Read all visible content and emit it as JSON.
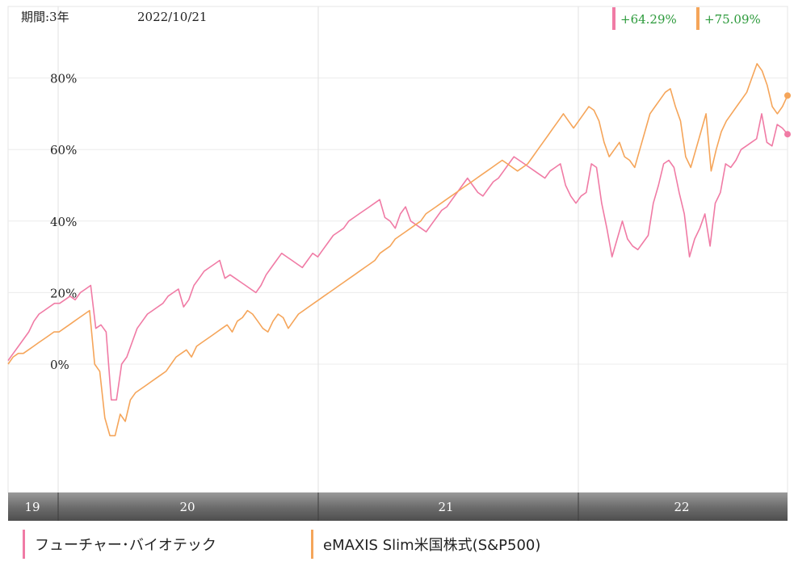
{
  "header": {
    "period_label": "期間:3年",
    "date": "2022/10/21"
  },
  "badges": [
    {
      "text": "+64.29%",
      "color": "#f07ba5"
    },
    {
      "text": "+75.09%",
      "color": "#f5a55a"
    }
  ],
  "chart_data": {
    "type": "line",
    "title": "",
    "ylabel": "",
    "xlabel": "",
    "y_ticks": [
      "0%",
      "20%",
      "40%",
      "60%",
      "80%"
    ],
    "y_tick_values": [
      0,
      20,
      40,
      60,
      80
    ],
    "ylim": [
      -33,
      92
    ],
    "x_ticks": [
      "19",
      "20",
      "21",
      "22"
    ],
    "grid": true,
    "legend_position": "bottom",
    "series": [
      {
        "name": "フューチャー･バイオテック",
        "color": "#f07ba5",
        "values": [
          1,
          3,
          5,
          7,
          9,
          12,
          14,
          15,
          16,
          17,
          17,
          18,
          19,
          18,
          20,
          21,
          22,
          10,
          11,
          9,
          -10,
          -10,
          0,
          2,
          6,
          10,
          12,
          14,
          15,
          16,
          17,
          19,
          20,
          21,
          16,
          18,
          22,
          24,
          26,
          27,
          28,
          29,
          24,
          25,
          24,
          23,
          22,
          21,
          20,
          22,
          25,
          27,
          29,
          31,
          30,
          29,
          28,
          27,
          29,
          31,
          30,
          32,
          34,
          36,
          37,
          38,
          40,
          41,
          42,
          43,
          44,
          45,
          46,
          41,
          40,
          38,
          42,
          44,
          40,
          39,
          38,
          37,
          39,
          41,
          43,
          44,
          46,
          48,
          50,
          52,
          50,
          48,
          47,
          49,
          51,
          52,
          54,
          56,
          58,
          57,
          56,
          55,
          54,
          53,
          52,
          54,
          55,
          56,
          50,
          47,
          45,
          47,
          48,
          56,
          55,
          45,
          38,
          30,
          35,
          40,
          35,
          33,
          32,
          34,
          36,
          45,
          50,
          56,
          57,
          55,
          48,
          42,
          30,
          35,
          38,
          42,
          33,
          45,
          48,
          56,
          55,
          57,
          60,
          61,
          62,
          63,
          70,
          62,
          61,
          67,
          66,
          64.29
        ]
      },
      {
        "name": "eMAXIS Slim米国株式(S&P500)",
        "color": "#f5a55a",
        "values": [
          0,
          2,
          3,
          3,
          4,
          5,
          6,
          7,
          8,
          9,
          9,
          10,
          11,
          12,
          13,
          14,
          15,
          0,
          -2,
          -15,
          -20,
          -20,
          -14,
          -16,
          -10,
          -8,
          -7,
          -6,
          -5,
          -4,
          -3,
          -2,
          0,
          2,
          3,
          4,
          2,
          5,
          6,
          7,
          8,
          9,
          10,
          11,
          9,
          12,
          13,
          15,
          14,
          12,
          10,
          9,
          12,
          14,
          13,
          10,
          12,
          14,
          15,
          16,
          17,
          18,
          19,
          20,
          21,
          22,
          23,
          24,
          25,
          26,
          27,
          28,
          29,
          31,
          32,
          33,
          35,
          36,
          37,
          38,
          39,
          40,
          42,
          43,
          44,
          45,
          46,
          47,
          48,
          49,
          50,
          51,
          52,
          53,
          54,
          55,
          56,
          57,
          56,
          55,
          54,
          55,
          56,
          58,
          60,
          62,
          64,
          66,
          68,
          70,
          68,
          66,
          68,
          70,
          72,
          71,
          68,
          62,
          58,
          60,
          62,
          58,
          57,
          55,
          60,
          65,
          70,
          72,
          74,
          76,
          77,
          72,
          68,
          58,
          55,
          60,
          65,
          70,
          54,
          60,
          65,
          68,
          70,
          72,
          74,
          76,
          80,
          84,
          82,
          78,
          72,
          70,
          72,
          75.09
        ]
      }
    ]
  }
}
